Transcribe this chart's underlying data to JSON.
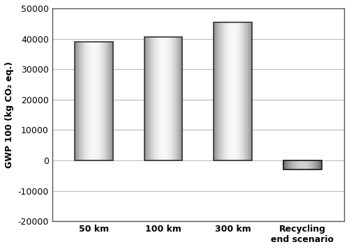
{
  "categories": [
    "50 km",
    "100 km",
    "300 km",
    "Recycling\nend scenario"
  ],
  "values": [
    39000,
    40500,
    45500,
    -3000
  ],
  "ylabel": "GWP 100 (kg CO₂ eq.)",
  "ylim": [
    -20000,
    50000
  ],
  "yticks": [
    -20000,
    -10000,
    0,
    10000,
    20000,
    30000,
    40000,
    50000
  ],
  "background_color": "#ffffff",
  "bar_width": 0.55,
  "grid_color": "#bbbbbb",
  "ylabel_fontsize": 9,
  "tick_fontsize": 9,
  "xtick_fontsize": 9
}
